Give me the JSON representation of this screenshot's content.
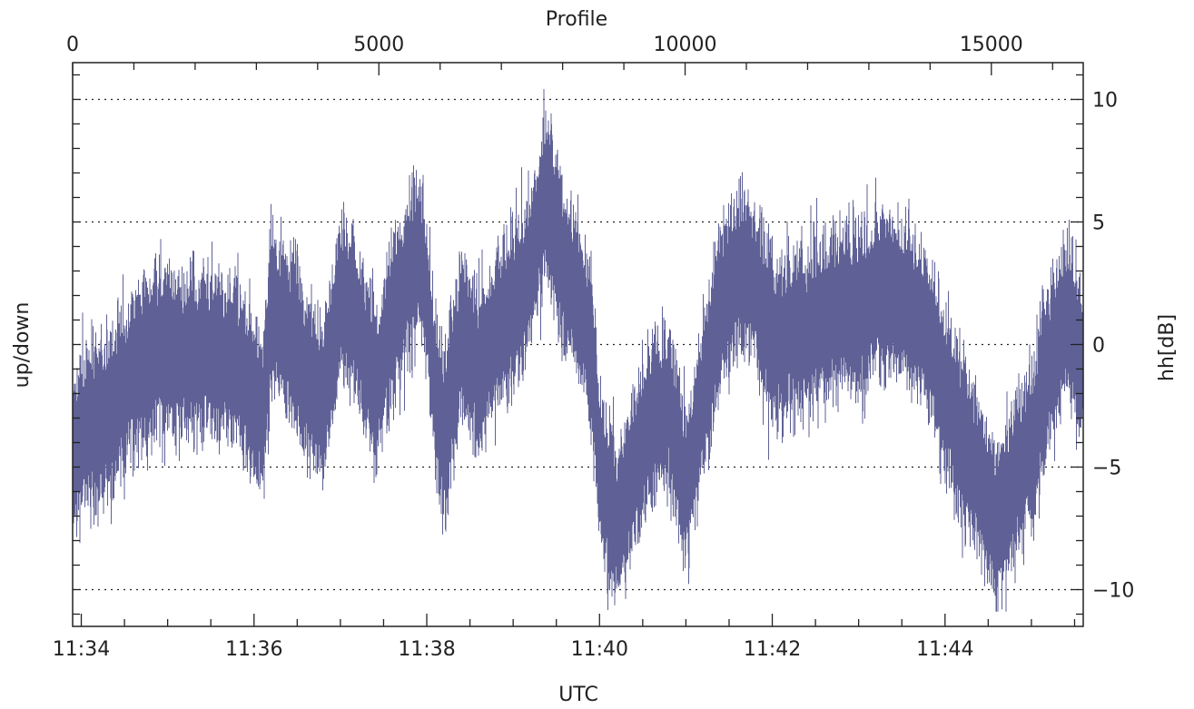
{
  "chart_data": {
    "type": "line",
    "title": "",
    "xlabel": "UTC",
    "x2label": "Profile",
    "ylabel": "up/down",
    "y2label": "hh[dB]",
    "x_ticks": [
      "11:34",
      "11:36",
      "11:38",
      "11:40",
      "11:42",
      "11:44"
    ],
    "x2_ticks": [
      "0",
      "5000",
      "10000",
      "15000"
    ],
    "y_ticks": [
      "10",
      "5",
      "0",
      "−5",
      "−10"
    ],
    "ylim": [
      -11.5,
      11.5
    ],
    "xlim_minutes": [
      693.9,
      705.6
    ],
    "grid": "dotted horizontal at ±5, ±10, 0",
    "legend": "none",
    "line_color": "#5f6196",
    "series": [
      {
        "x_minutes": [
          693.9,
          694.0,
          694.2,
          694.4,
          694.6,
          694.8,
          695.0,
          695.2,
          695.4,
          695.6,
          695.8,
          696.0,
          696.1,
          696.2,
          696.4,
          696.6,
          696.8,
          697.0,
          697.2,
          697.4,
          697.6,
          697.8,
          697.9,
          698.0,
          698.1,
          698.2,
          698.4,
          698.6,
          698.8,
          699.0,
          699.2,
          699.3,
          699.4,
          699.6,
          699.8,
          699.9,
          700.0,
          700.2,
          700.4,
          700.6,
          700.8,
          701.0,
          701.2,
          701.4,
          701.6,
          701.8,
          702.0,
          702.2,
          702.4,
          702.6,
          702.8,
          703.0,
          703.2,
          703.4,
          703.6,
          703.8,
          704.0,
          704.2,
          704.4,
          704.6,
          704.8,
          705.0,
          705.2,
          705.4,
          705.6
        ],
        "values": [
          -5,
          -3.5,
          -3.2,
          -2.5,
          -1,
          -0.5,
          -0.2,
          -0.5,
          -0.2,
          -0.5,
          -0.8,
          -2,
          -3,
          1.5,
          0.5,
          -1.5,
          -2.5,
          2,
          1,
          -2,
          1,
          3,
          4,
          2,
          -2,
          -4,
          0.5,
          -1,
          0.5,
          1.5,
          3,
          5,
          6,
          3,
          1.5,
          0,
          -5,
          -7.5,
          -5,
          -3,
          -2.5,
          -6,
          -2,
          1.5,
          3,
          2.5,
          0,
          0.5,
          0.5,
          1,
          1.5,
          1.5,
          2,
          2,
          1.5,
          0.5,
          -2,
          -4,
          -5.5,
          -7.5,
          -5.5,
          -4,
          -1,
          1,
          -1
        ]
      }
    ]
  }
}
